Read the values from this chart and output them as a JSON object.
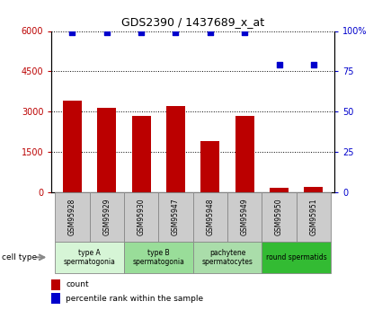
{
  "title": "GDS2390 / 1437689_x_at",
  "samples": [
    "GSM95928",
    "GSM95929",
    "GSM95930",
    "GSM95947",
    "GSM95948",
    "GSM95949",
    "GSM95950",
    "GSM95951"
  ],
  "counts": [
    3400,
    3150,
    2850,
    3200,
    1900,
    2850,
    150,
    200
  ],
  "percentile_ranks": [
    99,
    99,
    99,
    99,
    99,
    99,
    79,
    79
  ],
  "bar_color": "#bb0000",
  "dot_color": "#0000cc",
  "ylim_left": [
    0,
    6000
  ],
  "ylim_right": [
    0,
    100
  ],
  "yticks_left": [
    0,
    1500,
    3000,
    4500,
    6000
  ],
  "ytick_labels_left": [
    "0",
    "1500",
    "3000",
    "4500",
    "6000"
  ],
  "yticks_right": [
    0,
    25,
    50,
    75,
    100
  ],
  "ytick_labels_right": [
    "0",
    "25",
    "50",
    "75",
    "100%"
  ],
  "cell_groups": [
    {
      "label": "type A\nspermatogonia",
      "color": "#d6f5d6",
      "start": 0,
      "end": 2
    },
    {
      "label": "type B\nspermatogonia",
      "color": "#99dd99",
      "start": 2,
      "end": 4
    },
    {
      "label": "pachytene\nspermatocytes",
      "color": "#aaddaa",
      "start": 4,
      "end": 6
    },
    {
      "label": "round spermatids",
      "color": "#33bb33",
      "start": 6,
      "end": 8
    }
  ],
  "legend_count_color": "#bb0000",
  "legend_pct_color": "#0000cc",
  "cell_type_label": "cell type",
  "legend_count_label": "count",
  "legend_pct_label": "percentile rank within the sample",
  "sample_box_color": "#cccccc",
  "bg_color": "#ffffff"
}
